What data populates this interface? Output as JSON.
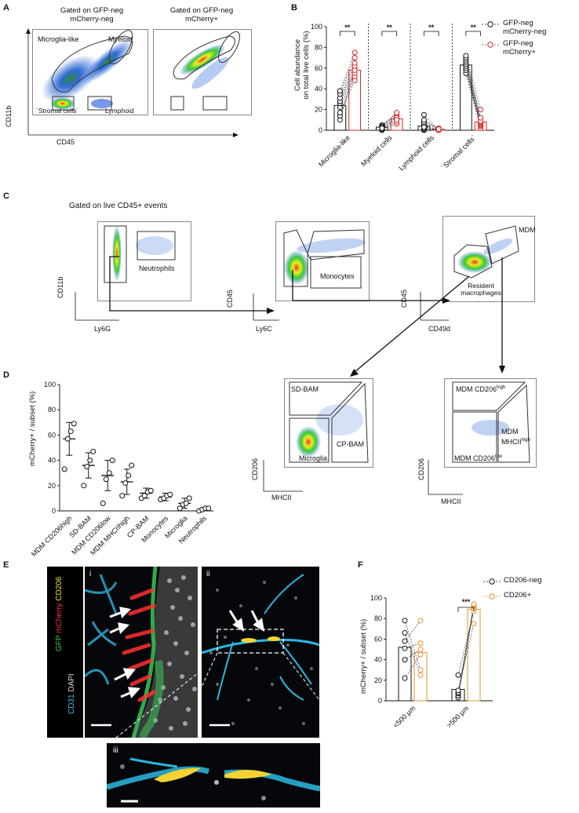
{
  "panels": {
    "A": "A",
    "B": "B",
    "C": "C",
    "D": "D",
    "E": "E",
    "F": "F"
  },
  "panelA": {
    "title_left": "Gated on GFP-neg\nmCherry-neg",
    "title_right": "Gated on GFP-neg\nmCherry+",
    "gate_microglia": "Microglia-like",
    "gate_myeloid": "Myeloid",
    "gate_stromal": "`Stromal cells`",
    "gate_lymphoid": "Lymphoid",
    "ylabel": "CD11b",
    "xlabel": "CD45"
  },
  "panelB": {
    "ylabel": "Cell abundance\non total live cells (%)",
    "sig": [
      "**",
      "**",
      "**",
      "**"
    ],
    "legend": [
      {
        "label": "GFP-neg\nmCherry-neg",
        "color": "#111111"
      },
      {
        "label": "GFP-neg\nmCherry+",
        "color": "#d42a2a"
      }
    ]
  },
  "panelC": {
    "title": "Gated on live CD45+ events",
    "neutrophils": "Neutrophils",
    "monocytes": "Monocytes",
    "mdm": "MDM",
    "resident": "Resident\nmacrophages",
    "ax1_y": "CD11b",
    "ax1_x": "Ly6G",
    "ax2_y": "CD45",
    "ax2_x": "Ly6C",
    "ax3_y": "CD45",
    "ax3_x": "CD49d"
  },
  "panelD": {
    "ylabel": "mCherry+ / subset (%)"
  },
  "panelD2": {
    "sdbam": "SD-BAM",
    "cpbam": "CP-BAM",
    "microglia": "Microglia",
    "ylabel": "CD206",
    "xlabel": "MHCII"
  },
  "panelD3": {
    "mdm_high": "MDM CD206",
    "mdm_high_sup": "high",
    "mdm_mhc": "MDM\nMHCII",
    "mdm_mhc_sup": "high",
    "mdm_low": "MDM CD206",
    "mdm_low_sup": "low",
    "ylabel": "CD206",
    "xlabel": "MHCII"
  },
  "panelE": {
    "stain_gfp": "GFP",
    "stain_mcherry": "mCherry",
    "stain_cd206": "CD206",
    "stain_cd31": "CD31",
    "stain_dapi": "DAPI",
    "label_i": "i",
    "label_ii": "ii",
    "label_iii": "iii"
  },
  "panelF": {
    "ylabel": "mCherry+ / subset (%)",
    "sig": "***",
    "legend": [
      {
        "label": "CD206-neg",
        "color": "#111111"
      },
      {
        "label": "CD206+",
        "color": "#e8902a"
      }
    ]
  },
  "chart_data": [
    {
      "type": "bar",
      "id": "B",
      "ylabel": "Cell abundance on total live cells (%)",
      "ylim": [
        0,
        100
      ],
      "yticks": [
        0,
        20,
        40,
        60,
        80,
        100
      ],
      "categories": [
        "Microglia-like",
        "Myeloid cells",
        "Lymphoid cells",
        "`Stromal cells`"
      ],
      "series": [
        {
          "name": "GFP-neg mCherry-neg",
          "color": "#111111",
          "values": [
            24,
            3,
            4,
            63
          ]
        },
        {
          "name": "GFP-neg mCherry+",
          "color": "#d42a2a",
          "values": [
            58,
            11,
            1,
            8
          ]
        }
      ],
      "points": [
        [
          [
            10,
            14,
            17,
            22,
            26,
            28,
            31,
            35,
            38
          ],
          [
            60,
            48,
            52,
            55,
            58,
            62,
            65,
            70,
            75
          ]
        ],
        [
          [
            0,
            1,
            2,
            3,
            4,
            5,
            4,
            3,
            2
          ],
          [
            6,
            8,
            10,
            12,
            14,
            16,
            17,
            12,
            10
          ]
        ],
        [
          [
            0,
            1,
            2,
            4,
            6,
            8,
            10,
            15,
            3
          ],
          [
            0,
            0,
            1,
            0,
            1,
            2,
            1,
            0,
            1
          ]
        ],
        [
          [
            55,
            58,
            60,
            62,
            64,
            66,
            68,
            70,
            72
          ],
          [
            2,
            4,
            5,
            6,
            7,
            8,
            9,
            12,
            20
          ]
        ]
      ],
      "significance": [
        "**",
        "**",
        "**",
        "**"
      ]
    },
    {
      "type": "scatter",
      "id": "D",
      "ylabel": "mCherry+ / subset (%)",
      "ylim": [
        0,
        100
      ],
      "yticks": [
        0,
        20,
        40,
        60,
        80,
        100
      ],
      "categories": [
        "MDM CD206high",
        "SD-BAM",
        "MDM CD206low",
        "MDM MHCIIhigh",
        "CP-BAM",
        "Monocytes",
        "Microglia",
        "Neutrophils"
      ],
      "mean": [
        57,
        36,
        28,
        23,
        14,
        11,
        6,
        1
      ],
      "sd": [
        13,
        10,
        12,
        10,
        4,
        3,
        4,
        1
      ],
      "points": [
        [
          33,
          57,
          63,
          69
        ],
        [
          20,
          35,
          40,
          47
        ],
        [
          6,
          25,
          30,
          40
        ],
        [
          12,
          22,
          28,
          36
        ],
        [
          10,
          12,
          15,
          16
        ],
        [
          9,
          10,
          12,
          13
        ],
        [
          2,
          5,
          6,
          10
        ],
        [
          0,
          1,
          2,
          2
        ]
      ]
    },
    {
      "type": "bar",
      "id": "F",
      "ylabel": "mCherry+ / subset (%)",
      "ylim": [
        0,
        100
      ],
      "yticks": [
        0,
        20,
        40,
        60,
        80,
        100
      ],
      "categories": [
        "<500 µm",
        ">500 µm"
      ],
      "series": [
        {
          "name": "CD206-neg",
          "color": "#111111",
          "values": [
            52,
            11
          ]
        },
        {
          "name": "CD206+",
          "color": "#e8902a",
          "values": [
            47,
            89
          ]
        }
      ],
      "points": [
        [
          [
            22,
            40,
            51,
            58,
            66,
            78
          ],
          [
            25,
            30,
            45,
            50,
            56,
            78
          ]
        ],
        [
          [
            3,
            5,
            7,
            8,
            10,
            25
          ],
          [
            75,
            87,
            90,
            92,
            93,
            94
          ]
        ]
      ],
      "significance": "***"
    }
  ]
}
